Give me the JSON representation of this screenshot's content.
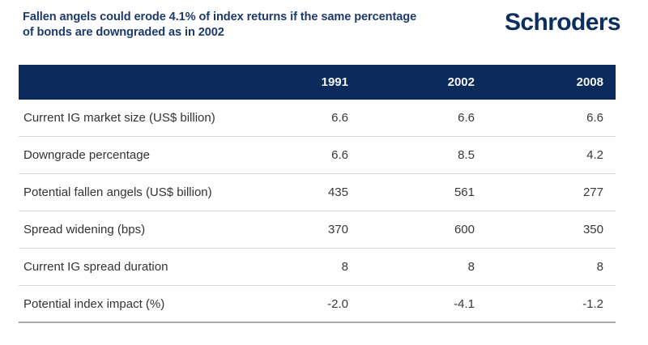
{
  "header": {
    "title_lines": [
      "Fallen angels could erode 4.1% of index returns if the same percentage",
      "of bonds are downgraded as in 2002"
    ],
    "logo": "Schroders"
  },
  "table": {
    "columns": [
      "1991",
      "2002",
      "2008"
    ],
    "rows": [
      {
        "label": "Current IG market size (US$ billion)",
        "values": [
          "6.6",
          "6.6",
          "6.6"
        ]
      },
      {
        "label": "Downgrade percentage",
        "values": [
          "6.6",
          "8.5",
          "4.2"
        ]
      },
      {
        "label": "Potential fallen angels (US$ billion)",
        "values": [
          "435",
          "561",
          "277"
        ]
      },
      {
        "label": "Spread widening (bps)",
        "values": [
          "370",
          "600",
          "350"
        ]
      },
      {
        "label": "Current IG spread duration",
        "values": [
          "8",
          "8",
          "8"
        ]
      },
      {
        "label": "Potential index impact (%)",
        "values": [
          "-2.0",
          "-4.1",
          "-1.2"
        ]
      }
    ]
  },
  "colors": {
    "header_bar": "#0a2b5c",
    "title_text": "#1e3a6c",
    "logo_text": "#0b2d5f",
    "row_text": "#333333",
    "row_separator": "#d9d9d9",
    "bottom_rule": "#a9a9a9"
  },
  "chart_data": {
    "type": "table",
    "title": "Fallen angels could erode 4.1% of index returns if the same percentage of bonds are downgraded as in 2002",
    "columns": [
      "1991",
      "2002",
      "2008"
    ],
    "rows": [
      {
        "label": "Current IG market size (US$ billion)",
        "values": [
          6.6,
          6.6,
          6.6
        ]
      },
      {
        "label": "Downgrade percentage",
        "values": [
          6.6,
          8.5,
          4.2
        ]
      },
      {
        "label": "Potential fallen angels (US$ billion)",
        "values": [
          435,
          561,
          277
        ]
      },
      {
        "label": "Spread widening (bps)",
        "values": [
          370,
          600,
          350
        ]
      },
      {
        "label": "Current IG spread duration",
        "values": [
          8,
          8,
          8
        ]
      },
      {
        "label": "Potential index impact (%)",
        "values": [
          -2.0,
          -4.1,
          -1.2
        ]
      }
    ],
    "legend_position": "none",
    "grid": "horizontal-rules"
  }
}
